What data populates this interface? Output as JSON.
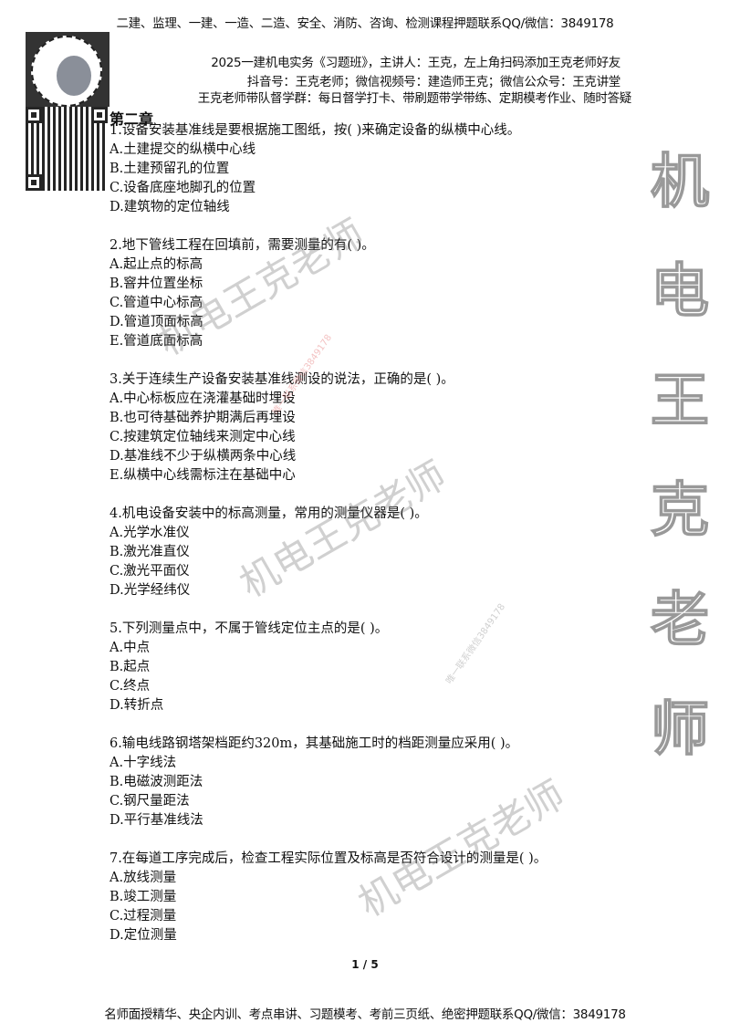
{
  "header": {
    "banner": "二建、监理、一建、一造、二造、安全、消防、咨询、检测课程押题联系QQ/微信：3849178",
    "intro_lines": [
      "2025一建机电实务《习题班》，主讲人：王克，左上角扫码添加王克老师好友",
      "抖音号：王克老师；微信视频号：建造师王克；微信公众号：王克讲堂",
      "王克老师带队督学群：每日督学打卡、带刷题带学带练、定期模考作业、随时答疑"
    ]
  },
  "chapter": "第二章",
  "questions": [
    {
      "stem": "1.设备安装基准线是要根据施工图纸，按( )来确定设备的纵横中心线。",
      "options": [
        "A.土建提交的纵横中心线",
        "B.土建预留孔的位置",
        "C.设备底座地脚孔的位置",
        "D.建筑物的定位轴线"
      ]
    },
    {
      "stem": "2.地下管线工程在回填前，需要测量的有( )。",
      "options": [
        "A.起止点的标高",
        "B.窨井位置坐标",
        "C.管道中心标高",
        "D.管道顶面标高",
        "E.管道底面标高"
      ]
    },
    {
      "stem": "3.关于连续生产设备安装基准线测设的说法，正确的是( )。",
      "options": [
        "A.中心标板应在浇灌基础时埋设",
        "B.也可待基础养护期满后再埋设",
        "C.按建筑定位轴线来测定中心线",
        "D.基准线不少于纵横两条中心线",
        "E.纵横中心线需标注在基础中心"
      ]
    },
    {
      "stem": "4.机电设备安装中的标高测量，常用的测量仪器是( )。",
      "options": [
        "A.光学水准仪",
        "B.激光准直仪",
        "C.激光平面仪",
        "D.光学经纬仪"
      ]
    },
    {
      "stem": "5.下列测量点中，不属于管线定位主点的是( )。",
      "options": [
        "A.中点",
        "B.起点",
        "C.终点",
        "D.转折点"
      ]
    },
    {
      "stem": "6.输电线路钢塔架档距约320m，其基础施工时的档距测量应采用( )。",
      "options": [
        "A.十字线法",
        "B.电磁波测距法",
        "C.钢尺量距法",
        "D.平行基准线法"
      ]
    },
    {
      "stem": "7.在每道工序完成后，检查工程实际位置及标高是否符合设计的测量是( )。",
      "options": [
        "A.放线测量",
        "B.竣工测量",
        "C.过程测量",
        "D.定位测量"
      ]
    }
  ],
  "watermarks": {
    "diagonal": "机电王克老师",
    "contact": "唯一联系微信3849178",
    "vertical": [
      "机",
      "电",
      "王",
      "克",
      "老",
      "师"
    ]
  },
  "page_number": "1 / 5",
  "footer": {
    "banner": "名师面授精华、央企内训、考点串讲、习题模考、考前三页纸、绝密押题联系QQ/微信：3849178"
  }
}
